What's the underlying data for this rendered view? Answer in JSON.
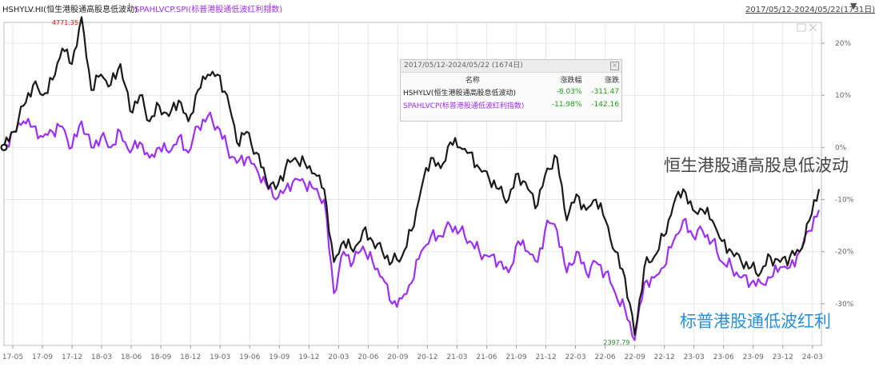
{
  "header": {
    "series1_code": "HSHYLV.HI(恒生港股通高股息低波动)",
    "separator": "|",
    "series2_code": "SPAHLVCP.SPI(标普港股通低波红利指数)",
    "separator2": "|",
    "date_range": "2017/05/12-2024/05/22(1731日)",
    "dropdown_icon": "triangle-down-icon"
  },
  "legend": {
    "title": "2017/05/12-2024/05/22 (1674日)",
    "col_name": "名称",
    "col_pct": "涨跌幅",
    "col_chg": "涨跌",
    "rows": [
      {
        "name": "HSHYLV(恒生港股通高股息低波动)",
        "pct": "-8.03%",
        "chg": "-311.47"
      },
      {
        "name": "SPAHLVCP(标普港股通低波红利指数)",
        "pct": "-11.98%",
        "chg": "-142.16"
      }
    ]
  },
  "labels": {
    "max_label": "4771.35",
    "min_label": "2397.79",
    "series1_big": "恒生港股通高股息低波动",
    "series2_big": "标普港股通低波红利"
  },
  "colors": {
    "series1": "#1a1a1a",
    "series2": "#9b30f0",
    "max_label": "#e01010",
    "min_label": "#2a8a2a",
    "positive": "#1a9a1a",
    "big_label1": "#444444",
    "big_label2": "#2a8fd6",
    "grid": "#e6e6e6"
  },
  "chart_data": {
    "type": "line",
    "y_unit": "%",
    "ylim": [
      -38,
      24
    ],
    "y_ticks": [
      "20%",
      "10%",
      "0%",
      "-10%",
      "-20%",
      "-30%"
    ],
    "y_tick_values": [
      20,
      10,
      0,
      -10,
      -20,
      -30
    ],
    "x_ticks": [
      "17-05",
      "17-09",
      "17-12",
      "18-03",
      "18-06",
      "18-09",
      "18-12",
      "19-03",
      "19-06",
      "19-09",
      "19-12",
      "20-03",
      "20-06",
      "20-09",
      "20-12",
      "21-03",
      "21-06",
      "21-09",
      "21-12",
      "22-03",
      "22-06",
      "22-09",
      "22-12",
      "23-03",
      "23-06",
      "23-09",
      "23-12",
      "24-03"
    ],
    "grid": true,
    "series": [
      {
        "name": "HSHYLV(恒生港股通高股息低波动)",
        "x": [
          "2017-05",
          "2017-06",
          "2017-07",
          "2017-08",
          "2017-09",
          "2017-10",
          "2017-11",
          "2017-12",
          "2018-01",
          "2018-02",
          "2018-03",
          "2018-04",
          "2018-05",
          "2018-06",
          "2018-07",
          "2018-08",
          "2018-09",
          "2018-10",
          "2018-11",
          "2018-12",
          "2019-01",
          "2019-02",
          "2019-03",
          "2019-04",
          "2019-05",
          "2019-06",
          "2019-07",
          "2019-08",
          "2019-09",
          "2019-10",
          "2019-11",
          "2019-12",
          "2020-01",
          "2020-02",
          "2020-03",
          "2020-04",
          "2020-05",
          "2020-06",
          "2020-07",
          "2020-08",
          "2020-09",
          "2020-10",
          "2020-11",
          "2020-12",
          "2021-01",
          "2021-02",
          "2021-03",
          "2021-04",
          "2021-05",
          "2021-06",
          "2021-07",
          "2021-08",
          "2021-09",
          "2021-10",
          "2021-11",
          "2021-12",
          "2022-01",
          "2022-02",
          "2022-03",
          "2022-04",
          "2022-05",
          "2022-06",
          "2022-07",
          "2022-08",
          "2022-09",
          "2022-10",
          "2022-11",
          "2022-12",
          "2023-01",
          "2023-02",
          "2023-03",
          "2023-04",
          "2023-05",
          "2023-06",
          "2023-07",
          "2023-08",
          "2023-09",
          "2023-10",
          "2023-11",
          "2023-12",
          "2024-01",
          "2024-02",
          "2024-03",
          "2024-04",
          "2024-05"
        ],
        "values": [
          0,
          3,
          8,
          12,
          10,
          13,
          19,
          16,
          25,
          11,
          14,
          12,
          16,
          7,
          10,
          5,
          8,
          6,
          9,
          5,
          11,
          14,
          14,
          10,
          1,
          3,
          -1,
          -6,
          -8,
          -4,
          -2,
          -3,
          -5,
          -8,
          -22,
          -18,
          -20,
          -16,
          -18,
          -20,
          -22,
          -21,
          -16,
          -8,
          -2,
          -4,
          1,
          0,
          -1,
          -4,
          -6,
          -8,
          -10,
          -5,
          -8,
          -11,
          -4,
          -2,
          -14,
          -9,
          -12,
          -10,
          -14,
          -20,
          -25,
          -36,
          -23,
          -21,
          -17,
          -11,
          -8,
          -12,
          -12,
          -14,
          -18,
          -20,
          -22,
          -23,
          -24,
          -21,
          -22,
          -21,
          -20,
          -14,
          -8
        ]
      },
      {
        "name": "SPAHLVCP(标普港股通低波红利指数)",
        "x": [
          "2017-05",
          "2017-06",
          "2017-07",
          "2017-08",
          "2017-09",
          "2017-10",
          "2017-11",
          "2017-12",
          "2018-01",
          "2018-02",
          "2018-03",
          "2018-04",
          "2018-05",
          "2018-06",
          "2018-07",
          "2018-08",
          "2018-09",
          "2018-10",
          "2018-11",
          "2018-12",
          "2019-01",
          "2019-02",
          "2019-03",
          "2019-04",
          "2019-05",
          "2019-06",
          "2019-07",
          "2019-08",
          "2019-09",
          "2019-10",
          "2019-11",
          "2019-12",
          "2020-01",
          "2020-02",
          "2020-03",
          "2020-04",
          "2020-05",
          "2020-06",
          "2020-07",
          "2020-08",
          "2020-09",
          "2020-10",
          "2020-11",
          "2020-12",
          "2021-01",
          "2021-02",
          "2021-03",
          "2021-04",
          "2021-05",
          "2021-06",
          "2021-07",
          "2021-08",
          "2021-09",
          "2021-10",
          "2021-11",
          "2021-12",
          "2022-01",
          "2022-02",
          "2022-03",
          "2022-04",
          "2022-05",
          "2022-06",
          "2022-07",
          "2022-08",
          "2022-09",
          "2022-10",
          "2022-11",
          "2022-12",
          "2023-01",
          "2023-02",
          "2023-03",
          "2023-04",
          "2023-05",
          "2023-06",
          "2023-07",
          "2023-08",
          "2023-09",
          "2023-10",
          "2023-11",
          "2023-12",
          "2024-01",
          "2024-02",
          "2024-03",
          "2024-04",
          "2024-05"
        ],
        "values": [
          0,
          3,
          5,
          4,
          2,
          3,
          4,
          0,
          5,
          0,
          2,
          0,
          3,
          -1,
          1,
          -2,
          0,
          -1,
          2,
          -1,
          4,
          6,
          4,
          0,
          -3,
          -2,
          -4,
          -7,
          -10,
          -8,
          -6,
          -7,
          -8,
          -10,
          -28,
          -20,
          -22,
          -19,
          -22,
          -25,
          -30,
          -29,
          -26,
          -20,
          -17,
          -17,
          -15,
          -16,
          -18,
          -20,
          -21,
          -22,
          -24,
          -18,
          -20,
          -22,
          -14,
          -16,
          -24,
          -20,
          -24,
          -22,
          -24,
          -28,
          -31,
          -37,
          -26,
          -25,
          -23,
          -18,
          -14,
          -17,
          -16,
          -18,
          -22,
          -23,
          -25,
          -26,
          -26,
          -25,
          -23,
          -23,
          -20,
          -16,
          -12
        ]
      }
    ]
  }
}
